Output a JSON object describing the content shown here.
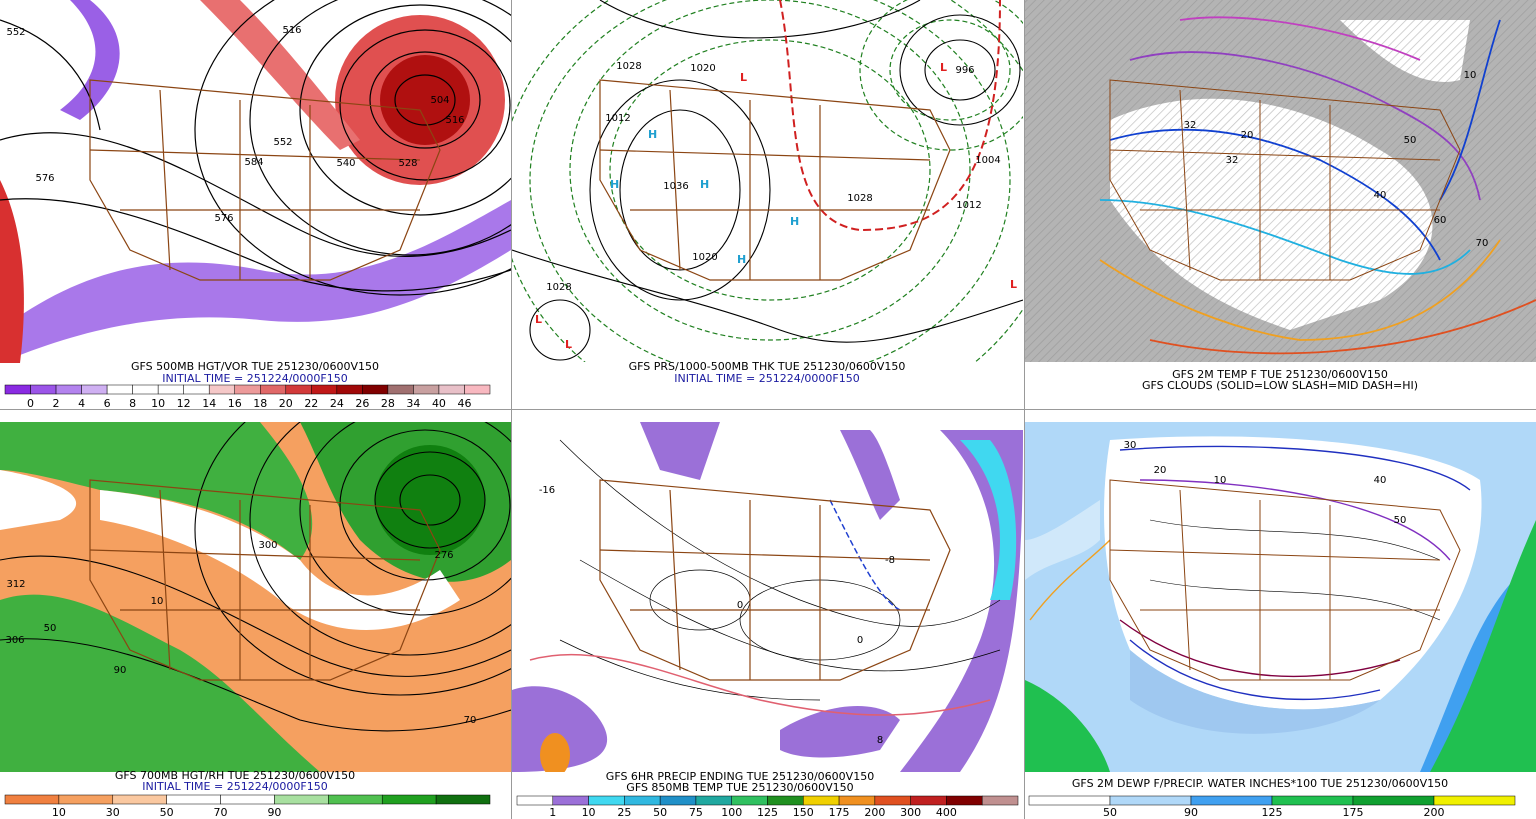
{
  "panels": [
    {
      "captions": [
        "GFS 500MB HGT/VOR TUE 251230/0600V150",
        "INITIAL TIME = 251224/0000F150"
      ],
      "caption_colors": [
        "#000000",
        "#1a1aa0"
      ],
      "map_labels": [
        "552",
        "576",
        "516",
        "552",
        "584",
        "540",
        "528",
        "576",
        "504",
        "516"
      ],
      "colorbar": {
        "colors": [
          "#8a2be2",
          "#9b55e8",
          "#b383ee",
          "#cfb0f2",
          "#ffffff",
          "#ffffff",
          "#ffffff",
          "#ffffff",
          "#f5c8c8",
          "#ec9a9a",
          "#e06868",
          "#d23a3a",
          "#c01818",
          "#a00808",
          "#800000",
          "#a07070",
          "#c8a0a0",
          "#e8c0c8",
          "#f8b8c0"
        ],
        "labels": [
          0,
          2,
          4,
          6,
          8,
          10,
          12,
          14,
          16,
          18,
          20,
          22,
          24,
          26,
          28,
          34,
          40,
          46
        ]
      }
    },
    {
      "captions": [
        "GFS PRS/1000-500MB THK TUE 251230/0600V150",
        "INITIAL TIME = 251224/0000F150"
      ],
      "caption_colors": [
        "#000000",
        "#1a1aa0"
      ],
      "map_labels": [
        "1020",
        "1028",
        "1012",
        "1036",
        "1028",
        "996",
        "1004",
        "1012",
        "1020",
        "1028"
      ],
      "colorbar": null
    },
    {
      "captions": [
        "GFS 2M TEMP F TUE 251230/0600V150",
        "GFS CLOUDS (SOLID=LOW SLASH=MID DASH=HI)"
      ],
      "caption_colors": [
        "#000000",
        "#000000"
      ],
      "map_labels": [
        "32",
        "20",
        "32",
        "10",
        "70",
        "60",
        "50",
        "40"
      ],
      "colorbar": null
    },
    {
      "captions": [
        "GFS 700MB HGT/RH TUE 251230/0600V150",
        "INITIAL TIME = 251224/0000F150"
      ],
      "caption_colors": [
        "#000000",
        "#1a1aa0"
      ],
      "map_labels": [
        "312",
        "306",
        "300",
        "10",
        "50",
        "90",
        "276",
        "70"
      ],
      "colorbar": {
        "colors": [
          "#f08040",
          "#f5a060",
          "#fac8a0",
          "#ffffff",
          "#ffffff",
          "#a8e0a0",
          "#50c050",
          "#20a020",
          "#107010"
        ],
        "labels": [
          10,
          30,
          50,
          70,
          90
        ]
      }
    },
    {
      "captions": [
        "GFS 6HR PRECIP ENDING TUE 251230/0600V150",
        "GFS 850MB TEMP TUE 251230/0600V150"
      ],
      "caption_colors": [
        "#000000",
        "#000000"
      ],
      "map_labels": [
        "-16",
        "0",
        "-8",
        "0",
        "8"
      ],
      "colorbar": {
        "colors": [
          "#ffffff",
          "#9b70d8",
          "#40d8f0",
          "#30b8e0",
          "#2090c8",
          "#20a8a0",
          "#30c060",
          "#209020",
          "#f0d000",
          "#f09020",
          "#e05020",
          "#c02020",
          "#800000",
          "#c09090"
        ],
        "labels": [
          1,
          10,
          25,
          50,
          75,
          100,
          125,
          150,
          175,
          200,
          300,
          400
        ]
      }
    },
    {
      "captions": [
        "GFS 2M DEWP F/PRECIP. WATER INCHES*100 TUE 251230/0600V150"
      ],
      "caption_colors": [
        "#000000"
      ],
      "map_labels": [
        "30",
        "20",
        "10",
        "40",
        "50"
      ],
      "colorbar": {
        "colors": [
          "#ffffff",
          "#b0d8f8",
          "#40a0f0",
          "#20c050",
          "#10a030",
          "#f0f000"
        ],
        "labels": [
          50,
          90,
          125,
          175,
          200
        ]
      }
    }
  ]
}
